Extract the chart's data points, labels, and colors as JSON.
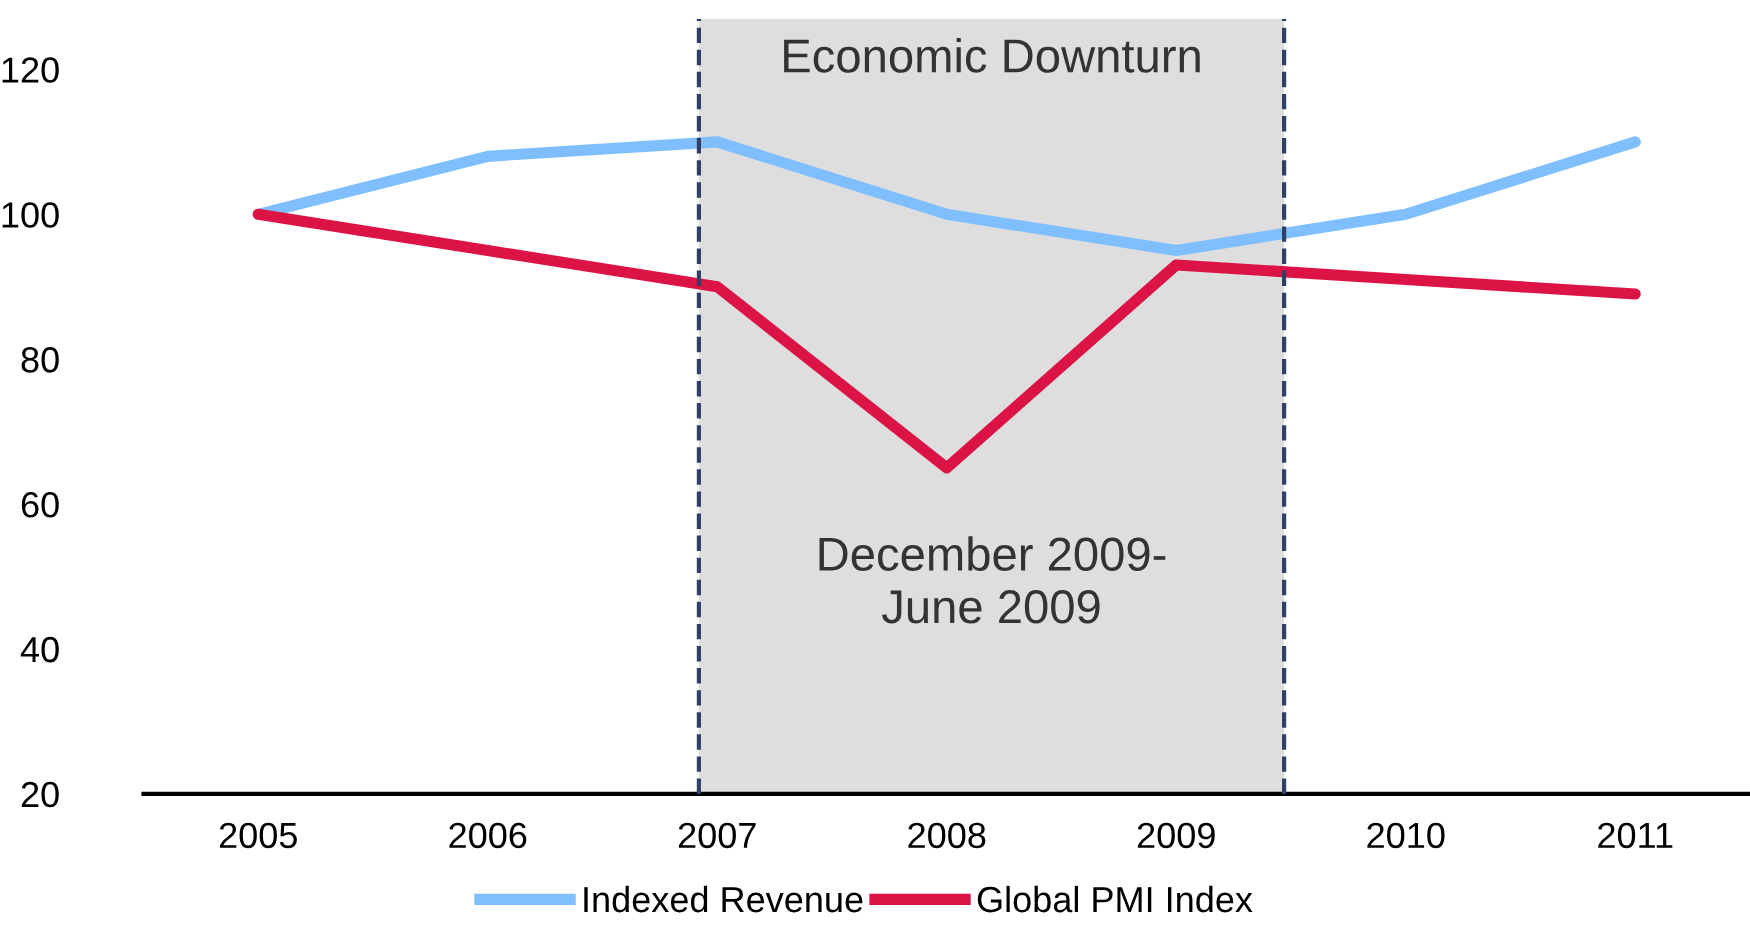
{
  "chart_data": {
    "type": "line",
    "x": [
      2005,
      2006,
      2007,
      2008,
      2009,
      2010,
      2011
    ],
    "xlim": [
      2004.5,
      2011.5
    ],
    "xticks": [
      2005,
      2006,
      2007,
      2008,
      2009,
      2010,
      2011
    ],
    "ylim": [
      20,
      127
    ],
    "yticks": [
      20,
      40,
      60,
      80,
      100,
      120
    ],
    "series": [
      {
        "name": "Indexed Revenue",
        "color": "#7fbfff",
        "values": [
          100,
          108,
          110,
          100,
          95,
          100,
          110
        ]
      },
      {
        "name": "Global PMI Index",
        "color": "#dc1446",
        "values": [
          100,
          95,
          90,
          65,
          93,
          91,
          89
        ]
      }
    ],
    "bands": [
      {
        "axis": "x",
        "from": 2006.92,
        "to": 2009.47,
        "label": "Economic Downturn",
        "color": "#dedede"
      }
    ],
    "ref_lines": [
      {
        "axis": "x",
        "value": 2006.92,
        "color": "#2f3f66",
        "line_style": "dashed"
      },
      {
        "axis": "x",
        "value": 2009.47,
        "color": "#2f3f66",
        "line_style": "dashed"
      }
    ],
    "annotations": [
      "December 2009-\nJune 2009"
    ],
    "legend": "bottom",
    "grid": false,
    "marker": "none",
    "line_style": "solid"
  }
}
